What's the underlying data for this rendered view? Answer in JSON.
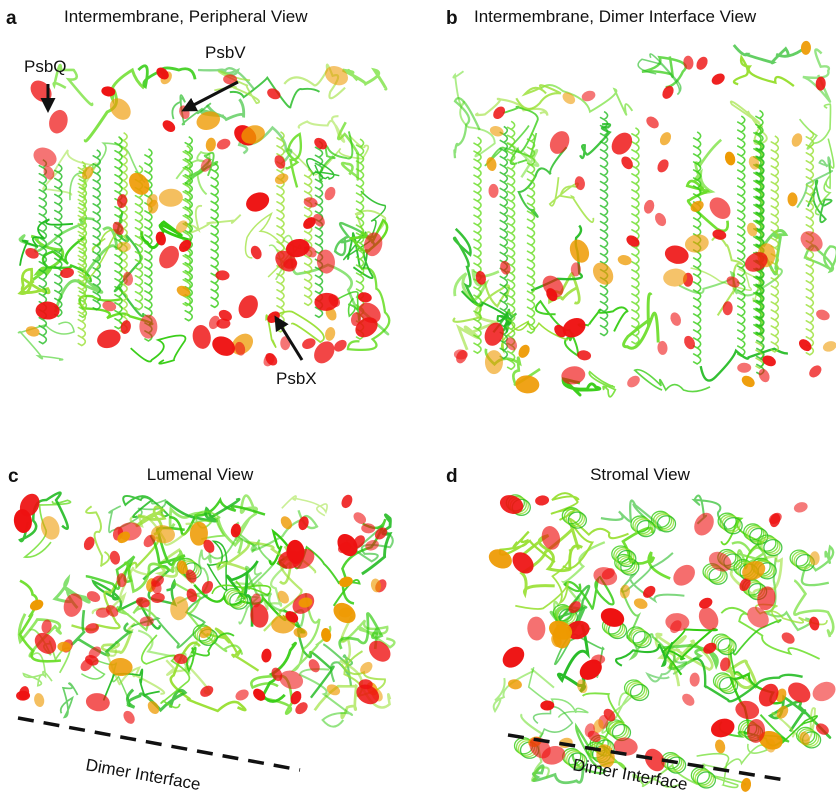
{
  "panels": [
    {
      "letter": "a",
      "title": "Intermembrane, Peripheral View",
      "annotations": [
        "PsbQ",
        "PsbV",
        "PsbX"
      ]
    },
    {
      "letter": "b",
      "title": "Intermembrane, Dimer Interface View"
    },
    {
      "letter": "c",
      "title": "Lumenal View",
      "annotations": [
        "Dimer Interface"
      ]
    },
    {
      "letter": "d",
      "title": "Stromal View",
      "annotations": [
        "Dimer Interface"
      ]
    }
  ]
}
